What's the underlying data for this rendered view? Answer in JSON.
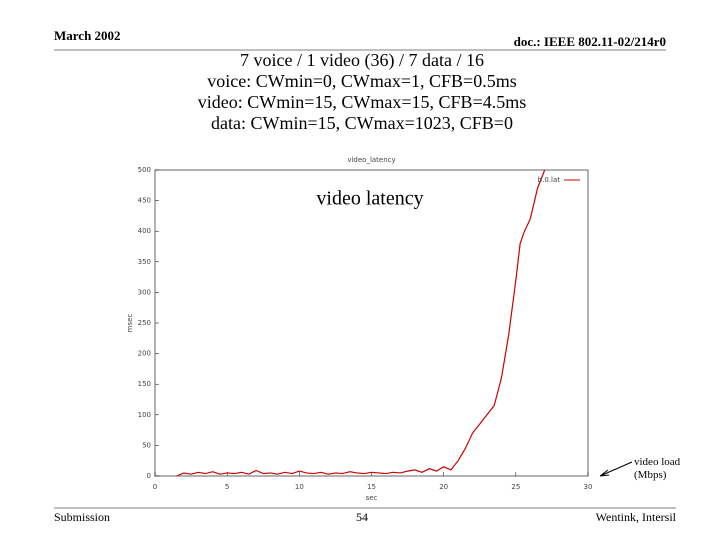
{
  "header": {
    "date": "March 2002",
    "doc": "doc.: IEEE 802.11-02/214r0"
  },
  "title_lines": [
    "7 voice / 1 video (36) / 7 data / 16",
    "voice: CWmin=0, CWmax=1, CFB=0.5ms",
    "video: CWmin=15, CWmax=15, CFB=4.5ms",
    "data: CWmin=15, CWmax=1023, CFB=0"
  ],
  "chart_data": {
    "type": "line",
    "title": "video_latency",
    "x_label": "sec",
    "y_label": "msec",
    "xlim": [
      0,
      30
    ],
    "xticks": [
      0,
      5,
      10,
      15,
      20,
      25,
      30
    ],
    "ylim": [
      0,
      500
    ],
    "yticks": [
      0,
      50,
      100,
      150,
      200,
      250,
      300,
      350,
      400,
      450,
      500
    ],
    "legend": "top-right",
    "annotations": [
      "video latency",
      "video load (Mbps)"
    ],
    "x": [
      1.5,
      2,
      2.5,
      3,
      3.5,
      4,
      4.5,
      5,
      5.5,
      6,
      6.5,
      7,
      7.5,
      8,
      8.5,
      9,
      9.5,
      10,
      10.5,
      11,
      11.5,
      12,
      12.5,
      13,
      13.5,
      14,
      14.5,
      15,
      15.5,
      16,
      16.5,
      17,
      17.5,
      18,
      18.5,
      19,
      19.5,
      20,
      20.5,
      21,
      21.5,
      22,
      22.5,
      23,
      23.5,
      24,
      24.5,
      25,
      25.3,
      25.6,
      26,
      26.5,
      27
    ],
    "series": [
      {
        "name": "b.0.lat",
        "color": "#cc0000",
        "values": [
          0,
          5,
          3,
          6,
          4,
          7,
          3,
          5,
          4,
          6,
          3,
          9,
          4,
          5,
          3,
          6,
          4,
          8,
          5,
          4,
          6,
          3,
          5,
          4,
          7,
          5,
          4,
          6,
          5,
          4,
          6,
          5,
          8,
          10,
          6,
          12,
          8,
          15,
          10,
          25,
          45,
          70,
          85,
          100,
          115,
          160,
          230,
          320,
          380,
          400,
          420,
          470,
          500
        ]
      }
    ]
  },
  "footer": {
    "left": "Submission",
    "page": "54",
    "right": "Wentink, Intersil"
  }
}
